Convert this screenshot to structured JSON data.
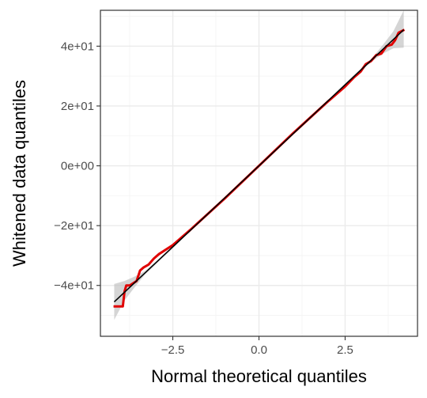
{
  "chart_data": {
    "type": "line",
    "title": "",
    "xlabel": "Normal theoretical quantiles",
    "ylabel": "Whitened data quantiles",
    "xlim": [
      -4.6,
      4.6
    ],
    "ylim": [
      -57,
      52
    ],
    "x_ticks": [
      -2.5,
      0.0,
      2.5
    ],
    "x_tick_labels": [
      "-2.5",
      "0.0",
      "2.5"
    ],
    "y_ticks": [
      -40,
      -20,
      0,
      20,
      40
    ],
    "y_tick_labels": [
      "-4e+01",
      "-2e+01",
      "0e+00",
      "2e+01",
      "4e+01"
    ],
    "grid": true,
    "legend": "none",
    "colors": {
      "data": "#e00000",
      "reference": "#000000",
      "band": "#bebebe",
      "border": "#333333"
    },
    "reference_line": {
      "x": [
        -4.2,
        4.2
      ],
      "y": [
        -45.5,
        45.5
      ]
    },
    "confidence_band": {
      "x": [
        -4.2,
        -3.9,
        -3.6,
        -3.3,
        -3.0,
        -2.5,
        -2.0,
        -1.0,
        0.0,
        1.0,
        2.0,
        2.5,
        3.0,
        3.3,
        3.6,
        3.9,
        4.2
      ],
      "lower": [
        -51.5,
        -45.0,
        -40.5,
        -36.3,
        -33.0,
        -27.6,
        -22.0,
        -11.0,
        0.0,
        10.9,
        21.6,
        26.9,
        32.1,
        35.1,
        37.5,
        39.3,
        39.5
      ],
      "upper": [
        -39.5,
        -38.5,
        -37.0,
        -35.1,
        -32.1,
        -26.9,
        -21.6,
        -10.9,
        0.0,
        11.0,
        22.0,
        27.6,
        33.0,
        36.3,
        40.5,
        45.0,
        52.0
      ]
    },
    "series": [
      {
        "name": "",
        "x": [
          -4.22,
          -3.95,
          -3.9,
          -3.85,
          -3.75,
          -3.55,
          -3.45,
          -3.35,
          -3.2,
          -3.05,
          -2.9,
          -2.5,
          -2.0,
          -1.0,
          0.0,
          1.0,
          2.0,
          2.5,
          2.75,
          2.95,
          3.1,
          3.25,
          3.4,
          3.55,
          3.7,
          3.85,
          3.95,
          4.05,
          4.22
        ],
        "y": [
          -47.0,
          -47.0,
          -42.0,
          -40.0,
          -40.0,
          -38.5,
          -35.0,
          -34.0,
          -33.0,
          -31.0,
          -29.5,
          -26.5,
          -21.5,
          -11.0,
          0.0,
          11.0,
          21.5,
          26.5,
          29.5,
          31.5,
          34.0,
          35.0,
          37.0,
          37.5,
          40.0,
          40.5,
          42.0,
          44.5,
          45.5
        ]
      }
    ]
  }
}
